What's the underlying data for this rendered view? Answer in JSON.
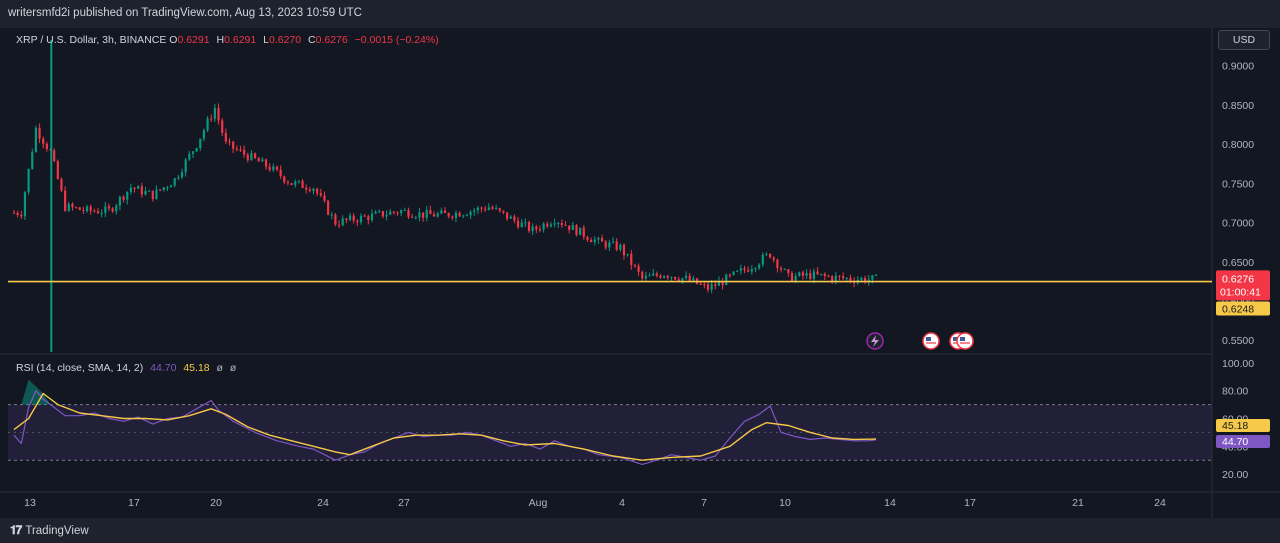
{
  "header": {
    "published_line": "writersmfd2i published on TradingView.com, Aug 13, 2023 10:59 UTC"
  },
  "symbol_bar": {
    "title": "XRP / U.S. Dollar, 3h, BINANCE",
    "open_label": "O",
    "open": "0.6291",
    "high_label": "H",
    "high": "0.6291",
    "low_label": "L",
    "low": "0.6270",
    "close_label": "C",
    "close": "0.6276",
    "change": "−0.0015 (−0.24%)"
  },
  "currency_button": "USD",
  "price_tags": {
    "last_price": "0.6276",
    "countdown": "01:00:41",
    "horizontal_line": "0.6248"
  },
  "rsi_legend": {
    "title": "RSI (14, close, SMA, 14, 2)",
    "rsi_value": "44.70",
    "sma_value": "45.18",
    "extra1": "ø",
    "extra2": "ø"
  },
  "rsi_tags": {
    "sma": "45.18",
    "rsi": "44.70"
  },
  "footer": {
    "brand": "TradingView"
  },
  "colors": {
    "background": "#131722",
    "up": "#089981",
    "down": "#f23645",
    "hline": "#f7c948",
    "rsi": "#7e57c2",
    "rsi_sma": "#f7c948",
    "axis_text": "#b2b5be"
  },
  "icons": [
    "lightning-event-icon",
    "us-flag-event-icon",
    "us-flag-event-icon",
    "us-flag-event-icon"
  ],
  "chart_data": [
    {
      "type": "candlestick",
      "title": "XRP / U.S. Dollar, 3h, BINANCE",
      "y_ticks": [
        0.55,
        0.6,
        0.65,
        0.7,
        0.75,
        0.8,
        0.85,
        0.9
      ],
      "y_tick_labels": [
        "0.5500",
        "0.6000",
        "0.6500",
        "0.7000",
        "0.7500",
        "0.8000",
        "0.8500",
        "0.9000"
      ],
      "ylim": [
        0.535,
        0.92
      ],
      "x_ticks": [
        "13",
        "17",
        "20",
        "24",
        "27",
        "Aug",
        "4",
        "7",
        "10",
        "14",
        "17",
        "21",
        "24"
      ],
      "horizontal_line": 0.6248,
      "last_price": 0.6276,
      "approx_path": [
        [
          0,
          0.7125
        ],
        [
          2,
          0.713
        ],
        [
          6,
          0.82
        ],
        [
          10,
          0.79
        ],
        [
          14,
          0.72
        ],
        [
          20,
          0.715
        ],
        [
          26,
          0.715
        ],
        [
          32,
          0.745
        ],
        [
          38,
          0.735
        ],
        [
          44,
          0.755
        ],
        [
          50,
          0.8
        ],
        [
          55,
          0.846
        ],
        [
          58,
          0.8
        ],
        [
          64,
          0.785
        ],
        [
          70,
          0.77
        ],
        [
          76,
          0.75
        ],
        [
          82,
          0.745
        ],
        [
          88,
          0.7
        ],
        [
          94,
          0.705
        ],
        [
          100,
          0.71
        ],
        [
          106,
          0.715
        ],
        [
          112,
          0.71
        ],
        [
          118,
          0.71
        ],
        [
          124,
          0.714
        ],
        [
          130,
          0.72
        ],
        [
          136,
          0.705
        ],
        [
          142,
          0.69
        ],
        [
          148,
          0.705
        ],
        [
          154,
          0.69
        ],
        [
          160,
          0.675
        ],
        [
          166,
          0.668
        ],
        [
          172,
          0.628
        ],
        [
          178,
          0.635
        ],
        [
          184,
          0.628
        ],
        [
          190,
          0.616
        ],
        [
          196,
          0.63
        ],
        [
          202,
          0.645
        ],
        [
          207,
          0.66
        ],
        [
          212,
          0.63
        ],
        [
          218,
          0.633
        ],
        [
          224,
          0.63
        ],
        [
          230,
          0.628
        ],
        [
          236,
          0.6276
        ]
      ]
    },
    {
      "type": "line",
      "title": "RSI (14, close, SMA, 14, 2)",
      "y_ticks": [
        20,
        40,
        60,
        80,
        100
      ],
      "y_tick_labels": [
        "20.00",
        "40.00",
        "60.00",
        "80.00",
        "100.00"
      ],
      "ylim": [
        10,
        105
      ],
      "bands": [
        30,
        70
      ],
      "series": [
        {
          "name": "RSI",
          "values": [
            [
              0,
              48
            ],
            [
              2,
              42
            ],
            [
              4,
              68
            ],
            [
              6,
              80
            ],
            [
              8,
              74
            ],
            [
              10,
              70
            ],
            [
              14,
              62
            ],
            [
              18,
              62
            ],
            [
              22,
              64
            ],
            [
              26,
              60
            ],
            [
              30,
              58
            ],
            [
              34,
              61
            ],
            [
              38,
              56
            ],
            [
              42,
              60
            ],
            [
              46,
              61
            ],
            [
              50,
              67
            ],
            [
              54,
              73
            ],
            [
              56,
              66
            ],
            [
              60,
              58
            ],
            [
              66,
              50
            ],
            [
              72,
              44
            ],
            [
              78,
              40
            ],
            [
              82,
              38
            ],
            [
              88,
              30
            ],
            [
              92,
              34
            ],
            [
              96,
              36
            ],
            [
              100,
              42
            ],
            [
              104,
              46
            ],
            [
              108,
              50
            ],
            [
              112,
              47
            ],
            [
              116,
              48
            ],
            [
              120,
              48
            ],
            [
              124,
              50
            ],
            [
              128,
              48
            ],
            [
              132,
              44
            ],
            [
              136,
              40
            ],
            [
              140,
              42
            ],
            [
              144,
              38
            ],
            [
              148,
              44
            ],
            [
              152,
              40
            ],
            [
              156,
              38
            ],
            [
              160,
              34
            ],
            [
              166,
              32
            ],
            [
              172,
              27
            ],
            [
              176,
              30
            ],
            [
              180,
              34
            ],
            [
              184,
              32
            ],
            [
              188,
              30
            ],
            [
              192,
              33
            ],
            [
              196,
              46
            ],
            [
              200,
              58
            ],
            [
              204,
              63
            ],
            [
              207,
              69
            ],
            [
              210,
              50
            ],
            [
              214,
              47
            ],
            [
              218,
              45
            ],
            [
              222,
              46
            ],
            [
              226,
              45
            ],
            [
              230,
              44
            ],
            [
              234,
              44
            ],
            [
              236,
              44.7
            ]
          ]
        },
        {
          "name": "SMA",
          "values": [
            [
              0,
              52
            ],
            [
              4,
              60
            ],
            [
              8,
              78
            ],
            [
              12,
              70
            ],
            [
              18,
              64
            ],
            [
              24,
              62
            ],
            [
              30,
              60
            ],
            [
              36,
              60
            ],
            [
              42,
              59
            ],
            [
              48,
              62
            ],
            [
              54,
              67
            ],
            [
              58,
              63
            ],
            [
              64,
              54
            ],
            [
              70,
              48
            ],
            [
              76,
              44
            ],
            [
              82,
              40
            ],
            [
              88,
              36
            ],
            [
              92,
              34
            ],
            [
              98,
              40
            ],
            [
              104,
              46
            ],
            [
              110,
              48
            ],
            [
              116,
              48
            ],
            [
              122,
              49
            ],
            [
              128,
              48
            ],
            [
              134,
              44
            ],
            [
              140,
              41
            ],
            [
              148,
              42
            ],
            [
              156,
              38
            ],
            [
              164,
              33
            ],
            [
              172,
              30
            ],
            [
              180,
              32
            ],
            [
              188,
              33
            ],
            [
              196,
              40
            ],
            [
              202,
              52
            ],
            [
              206,
              57
            ],
            [
              212,
              55
            ],
            [
              218,
              50
            ],
            [
              224,
              46
            ],
            [
              230,
              45
            ],
            [
              236,
              45.18
            ]
          ]
        }
      ]
    }
  ]
}
